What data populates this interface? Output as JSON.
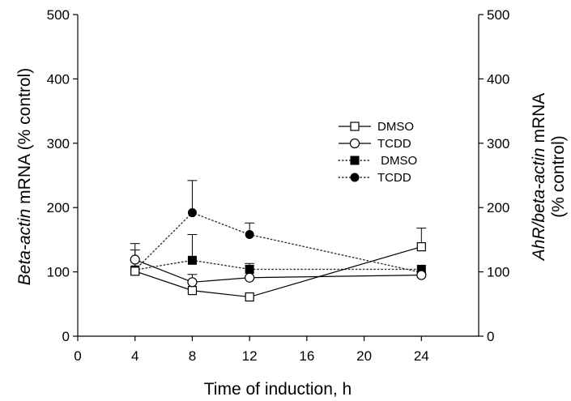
{
  "chart_data": {
    "type": "line",
    "xlabel": "Time of induction, h",
    "ylabel_left_italic": "Beta-actin",
    "ylabel_left_rest": " mRNA (% control)",
    "ylabel_right_italic": "AhR/beta-actin",
    "ylabel_right_rest": " mRNA",
    "ylabel_right_line2": "(% control)",
    "xlim": [
      0,
      28
    ],
    "ylim": [
      0,
      500
    ],
    "xticks": [
      "0",
      "4",
      "8",
      "12",
      "16",
      "20",
      "24"
    ],
    "yticks": [
      "0",
      "100",
      "200",
      "300",
      "400",
      "500"
    ],
    "grid": false,
    "legend_position": "center-right",
    "series": [
      {
        "name": "DMSO",
        "axis": "left",
        "marker": "open-square",
        "line": "solid",
        "x": [
          4,
          8,
          12,
          24
        ],
        "y": [
          101,
          71,
          61,
          139
        ],
        "err": [
          33,
          0,
          0,
          29
        ]
      },
      {
        "name": "TCDD",
        "axis": "left",
        "marker": "open-circle",
        "line": "solid",
        "x": [
          4,
          8,
          12,
          24
        ],
        "y": [
          119,
          84,
          91,
          95
        ],
        "err": [
          25,
          12,
          22,
          0
        ]
      },
      {
        "name": " DMSO",
        "axis": "right",
        "marker": "filled-square",
        "line": "dotted",
        "x": [
          4,
          8,
          12,
          24
        ],
        "y": [
          103,
          118,
          104,
          104
        ],
        "err": [
          0,
          40,
          0,
          0
        ]
      },
      {
        "name": "TCDD",
        "axis": "right",
        "marker": "filled-circle",
        "line": "dotted",
        "x": [
          4,
          8,
          12,
          24
        ],
        "y": [
          103,
          192,
          158,
          99
        ],
        "err": [
          0,
          50,
          18,
          0
        ]
      }
    ]
  }
}
